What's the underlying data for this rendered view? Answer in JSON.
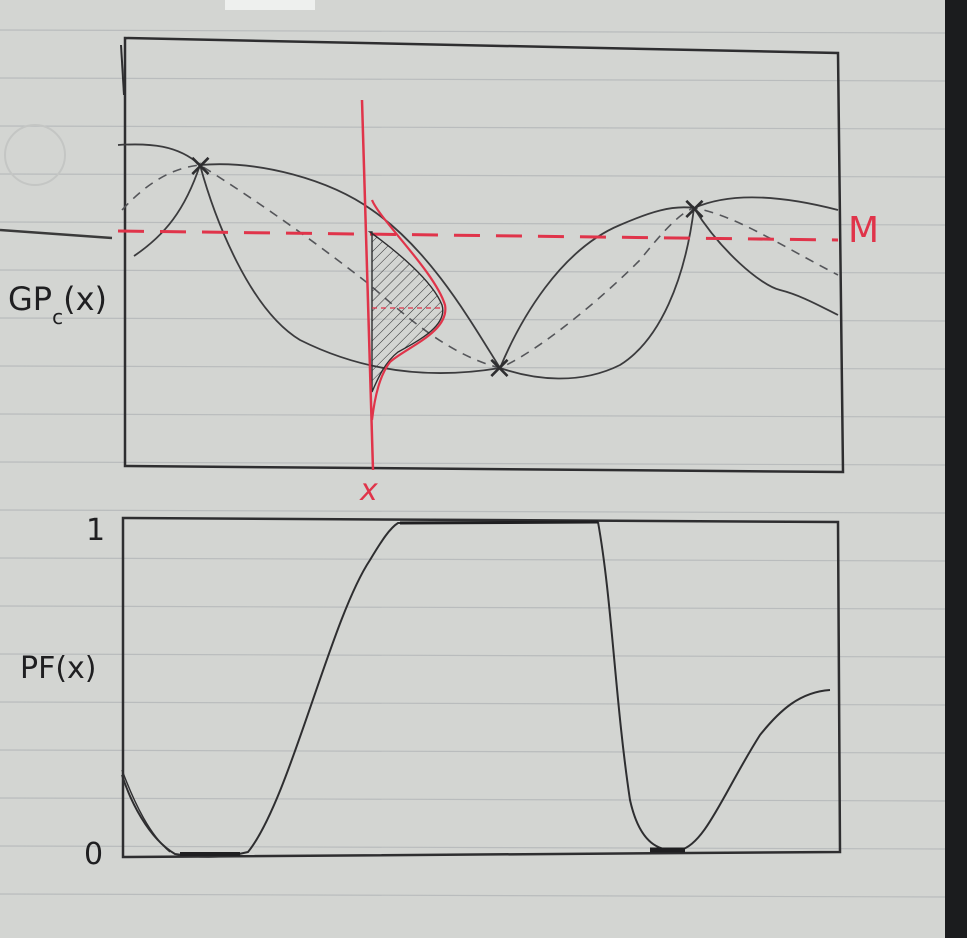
{
  "colors": {
    "paper": "#d3d5d2",
    "rule_line": "#b9bcbd",
    "pencil": "#2e2e30",
    "red": "#e0344a",
    "dark_edge": "#1b1c1e"
  },
  "top_plot": {
    "ylabel": "GP",
    "ylabel_subscript": "c",
    "ylabel_arg": "(x)",
    "threshold_label": "M",
    "cursor_label": "x",
    "observation_marker": "×"
  },
  "bottom_plot": {
    "ylabel": "PF(x)",
    "ytick_top": "1",
    "ytick_bottom": "0"
  }
}
